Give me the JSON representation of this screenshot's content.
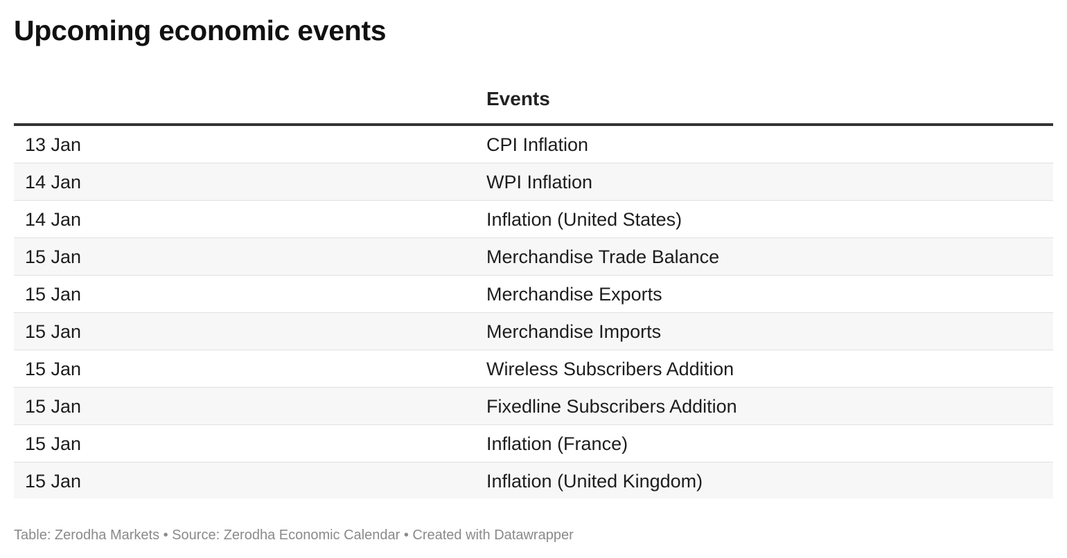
{
  "title": "Upcoming economic events",
  "table": {
    "headers": [
      "",
      "Events"
    ],
    "rows": [
      {
        "date": "13 Jan",
        "event": "CPI Inflation"
      },
      {
        "date": "14 Jan",
        "event": "WPI Inflation"
      },
      {
        "date": "14 Jan",
        "event": "Inflation (United States)"
      },
      {
        "date": "15 Jan",
        "event": "Merchandise Trade Balance"
      },
      {
        "date": "15 Jan",
        "event": "Merchandise Exports"
      },
      {
        "date": "15 Jan",
        "event": "Merchandise Imports"
      },
      {
        "date": "15 Jan",
        "event": "Wireless Subscribers Addition"
      },
      {
        "date": "15 Jan",
        "event": "Fixedline Subscribers Addition"
      },
      {
        "date": "15 Jan",
        "event": "Inflation (France)"
      },
      {
        "date": "15 Jan",
        "event": "Inflation (United Kingdom)"
      }
    ]
  },
  "footer": "Table: Zerodha Markets • Source: Zerodha Economic Calendar • Created with Datawrapper"
}
